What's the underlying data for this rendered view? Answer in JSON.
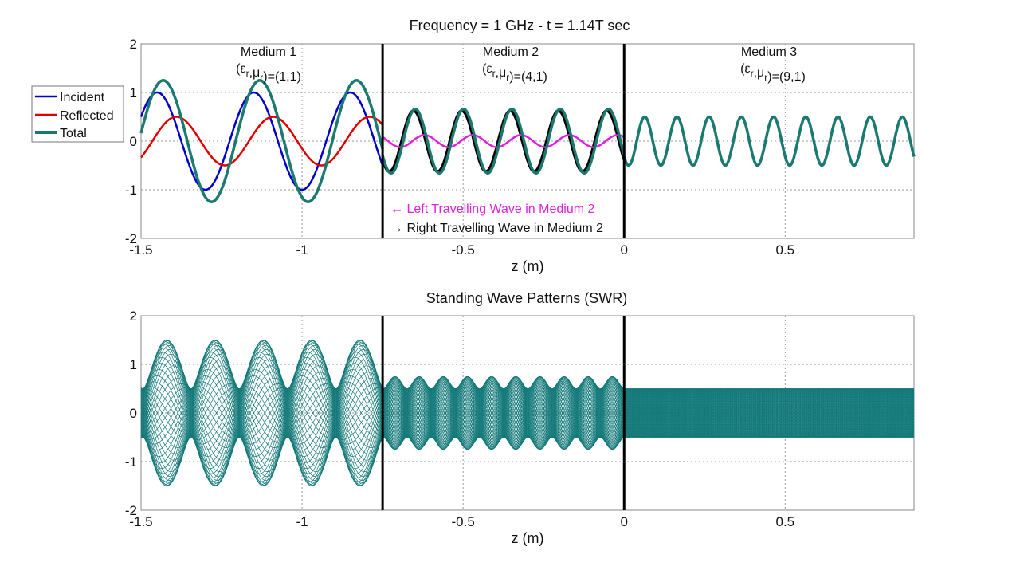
{
  "chart_data": [
    {
      "type": "line",
      "title": "Frequency = 1 GHz   -  t = 1.14T  sec",
      "xlabel": "z (m)",
      "ylabel": "",
      "xlim": [
        -1.5,
        0.9
      ],
      "ylim": [
        -2,
        2
      ],
      "xticks": [
        "-1.5",
        "-1",
        "-0.5",
        "0",
        "0.5"
      ],
      "xtick_values": [
        -1.5,
        -1,
        -0.5,
        0,
        0.5
      ],
      "yticks": [
        "-2",
        "-1",
        "0",
        "1",
        "2"
      ],
      "ytick_values": [
        -2,
        -1,
        0,
        1,
        2
      ],
      "grid": true,
      "legend": {
        "placement": "left-outside",
        "entries": [
          "Incident",
          "Reflected",
          "Total"
        ]
      },
      "interfaces_z": [
        -0.75,
        0
      ],
      "media": [
        {
          "label": "Medium 1",
          "params": "(εr,μr)=(1,1)",
          "z_range": [
            -1.5,
            -0.75
          ],
          "wavelength": 0.3
        },
        {
          "label": "Medium 2",
          "params": "(εr,μr)=(4,1)",
          "z_range": [
            -0.75,
            0
          ],
          "wavelength": 0.15
        },
        {
          "label": "Medium 3",
          "params": "(εr,μr)=(9,1)",
          "z_range": [
            0,
            0.9
          ],
          "wavelength": 0.1
        }
      ],
      "annotations": [
        "← Left Travelling Wave in Medium 2",
        "→ Right Travelling Wave in Medium 2"
      ],
      "series": [
        {
          "name": "Incident",
          "color": "#0000cc",
          "medium": 1,
          "direction": "right",
          "amplitude": 1.0,
          "peak_z": -1.45
        },
        {
          "name": "Reflected",
          "color": "#dd0000",
          "medium": 1,
          "direction": "left",
          "amplitude": 0.5,
          "peak_z": -1.09
        },
        {
          "name": "Right Travelling Wave in Medium 2",
          "color": "#000000",
          "medium": 2,
          "direction": "right",
          "amplitude": 0.625,
          "peak_z": -0.653
        },
        {
          "name": "Left Travelling Wave in Medium 2",
          "color": "#e020e0",
          "medium": 2,
          "direction": "left",
          "amplitude": 0.125,
          "peak_z": -0.62
        },
        {
          "name": "Transmitted (Medium 3)",
          "color": "#1a7a70",
          "medium": 3,
          "direction": "right",
          "amplitude": 0.5,
          "peak_z": 0.064
        },
        {
          "name": "Total",
          "color": "#1a7a70",
          "medium": "all",
          "direction": "sum"
        }
      ]
    },
    {
      "type": "line",
      "title": "Standing Wave Patterns (SWR)",
      "xlabel": "z (m)",
      "xlim": [
        -1.5,
        0.9
      ],
      "ylim": [
        -2,
        2
      ],
      "xticks": [
        "-1.5",
        "-1",
        "-0.5",
        "0",
        "0.5"
      ],
      "xtick_values": [
        -1.5,
        -1,
        -0.5,
        0,
        0.5
      ],
      "yticks": [
        "-2",
        "-1",
        "0",
        "1",
        "2"
      ],
      "ytick_values": [
        -2,
        -1,
        0,
        1,
        2
      ],
      "grid": true,
      "interfaces_z": [
        -0.75,
        0
      ],
      "envelope": [
        {
          "medium": 1,
          "max": 1.5,
          "min": 0.5
        },
        {
          "medium": 2,
          "max": 0.75,
          "min": 0.5
        },
        {
          "medium": 3,
          "max": 0.5,
          "min": 0.5
        }
      ],
      "series_color": "#127878",
      "snapshots": 48
    }
  ]
}
